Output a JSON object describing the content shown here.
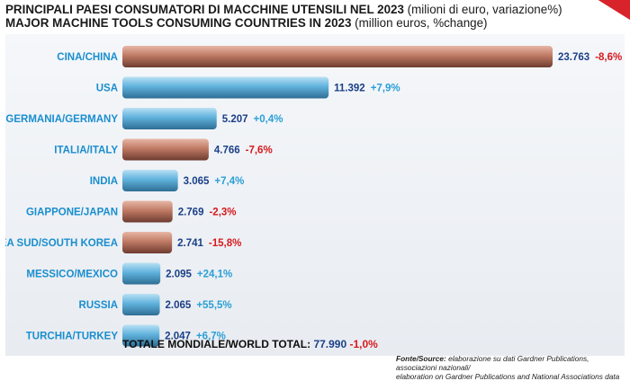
{
  "title_it_prefix": "PRINCIPALI PAESI CONSUMATORI DI MACCHINE UTENSILI NEL 2023",
  "title_it_suffix": " (milioni di euro, variazione%)",
  "title_en_prefix": "MAJOR MACHINE TOOLS CONSUMING COUNTRIES IN 2023",
  "title_en_suffix": " (million euros, %change)",
  "colors": {
    "label": "#1a8ecf",
    "value": "#1b3f87",
    "positive": "#2a9fd6",
    "negative": "#d7191c",
    "bar_blue_light": "#b9e0f3",
    "bar_blue_mid": "#5fb2dd",
    "bar_blue_dark": "#2f6e94",
    "bar_red_light": "#e7b7a6",
    "bar_red_mid": "#bf7a64",
    "bar_red_dark": "#6e3c30"
  },
  "chart_data": {
    "type": "bar",
    "orientation": "horizontal",
    "categories": [
      "CINA/CHINA",
      "USA",
      "GERMANIA/GERMANY",
      "ITALIA/ITALY",
      "INDIA",
      "GIAPPONE/JAPAN",
      "COREA SUD/SOUTH KOREA",
      "MESSICO/MEXICO",
      "RUSSIA",
      "TURCHIA/TURKEY"
    ],
    "values": [
      23763,
      11392,
      5207,
      4766,
      3065,
      2769,
      2741,
      2095,
      2065,
      2047
    ],
    "value_labels": [
      "23.763",
      "11.392",
      "5.207",
      "4.766",
      "3.065",
      "2.769",
      "2.741",
      "2.095",
      "2.065",
      "2.047"
    ],
    "change_labels": [
      "-8,6%",
      "+7,9%",
      "+0,4%",
      "-7,6%",
      "+7,4%",
      "-2,3%",
      "-15,8%",
      "+24,1%",
      "+55,5%",
      "+6,7%"
    ],
    "changes": [
      -8.6,
      7.9,
      0.4,
      -7.6,
      7.4,
      -2.3,
      -15.8,
      24.1,
      55.5,
      6.7
    ],
    "xlim": [
      0,
      23763
    ],
    "grid": false,
    "legend": "none"
  },
  "footer": {
    "label": "TOTALE MONDIALE/WORLD TOTAL:",
    "value": "77.990",
    "change": "-1,0%"
  },
  "source": {
    "label": "Fonte/Source:",
    "line1": " elaborazione su dati Gardner Publications, associazioni nazionali/",
    "line2": "elaboration on Gardner Publications and National Associations data"
  }
}
